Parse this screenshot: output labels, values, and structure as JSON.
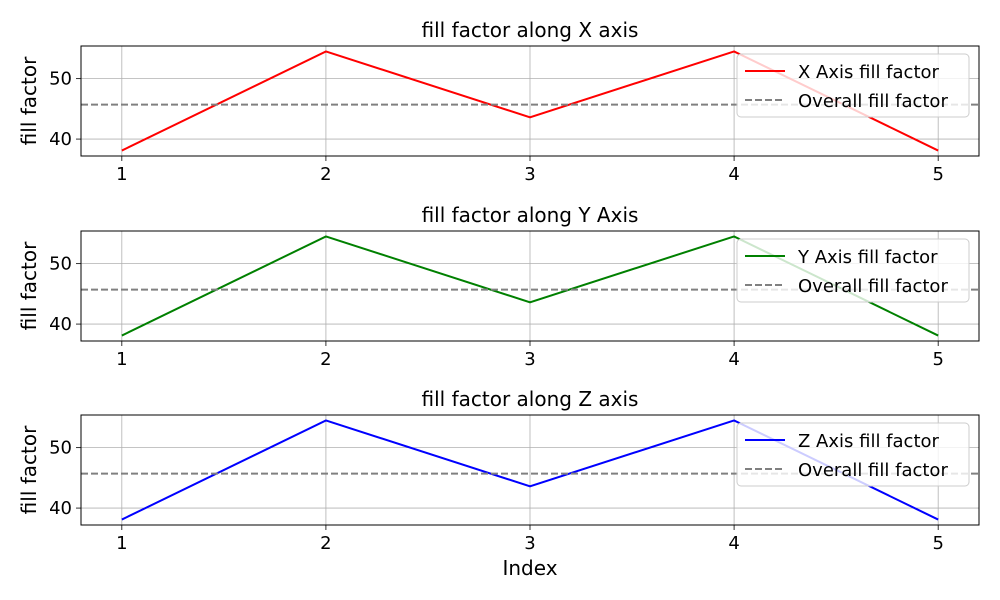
{
  "figure": {
    "xlabel": "Index"
  },
  "chart_data": [
    {
      "type": "line",
      "title": "fill factor along X axis",
      "xlabel": "",
      "ylabel": "fill factor",
      "x": [
        1,
        2,
        3,
        4,
        5
      ],
      "xticks": [
        "1",
        "2",
        "3",
        "4",
        "5"
      ],
      "yticks": [
        "40",
        "50"
      ],
      "xlim": [
        0.8,
        5.2
      ],
      "ylim": [
        37.2,
        55.4
      ],
      "grid": true,
      "legend_position": "top-right",
      "series": [
        {
          "name": "X Axis fill factor",
          "values": [
            38.1,
            54.5,
            43.6,
            54.5,
            38.1
          ],
          "color": "#ff0000",
          "style": "solid"
        },
        {
          "name": "Overall fill factor",
          "values": [
            45.7,
            45.7,
            45.7,
            45.7,
            45.7
          ],
          "color": "#808080",
          "style": "dashed"
        }
      ]
    },
    {
      "type": "line",
      "title": "fill factor along Y Axis",
      "xlabel": "",
      "ylabel": "fill factor",
      "x": [
        1,
        2,
        3,
        4,
        5
      ],
      "xticks": [
        "1",
        "2",
        "3",
        "4",
        "5"
      ],
      "yticks": [
        "40",
        "50"
      ],
      "xlim": [
        0.8,
        5.2
      ],
      "ylim": [
        37.2,
        55.4
      ],
      "grid": true,
      "legend_position": "top-right",
      "series": [
        {
          "name": "Y Axis fill factor",
          "values": [
            38.1,
            54.5,
            43.6,
            54.5,
            38.1
          ],
          "color": "#008000",
          "style": "solid"
        },
        {
          "name": "Overall fill factor",
          "values": [
            45.7,
            45.7,
            45.7,
            45.7,
            45.7
          ],
          "color": "#808080",
          "style": "dashed"
        }
      ]
    },
    {
      "type": "line",
      "title": "fill factor along Z axis",
      "xlabel": "Index",
      "ylabel": "fill factor",
      "x": [
        1,
        2,
        3,
        4,
        5
      ],
      "xticks": [
        "1",
        "2",
        "3",
        "4",
        "5"
      ],
      "yticks": [
        "40",
        "50"
      ],
      "xlim": [
        0.8,
        5.2
      ],
      "ylim": [
        37.2,
        55.4
      ],
      "grid": true,
      "legend_position": "top-right",
      "series": [
        {
          "name": "Z Axis fill factor",
          "values": [
            38.1,
            54.5,
            43.6,
            54.5,
            38.1
          ],
          "color": "#0000ff",
          "style": "solid"
        },
        {
          "name": "Overall fill factor",
          "values": [
            45.7,
            45.7,
            45.7,
            45.7,
            45.7
          ],
          "color": "#808080",
          "style": "dashed"
        }
      ]
    }
  ]
}
